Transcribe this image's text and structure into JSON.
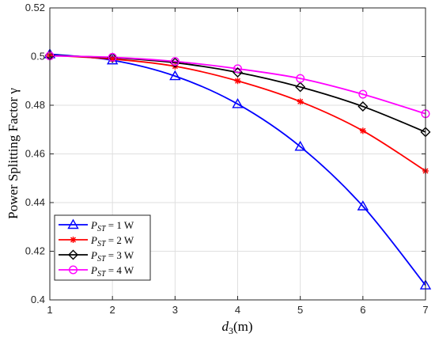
{
  "chart_data": {
    "type": "line",
    "xlabel": "d3(m)",
    "xlabel_parts": {
      "main": "d",
      "sub": "3",
      "rest": "(m)"
    },
    "ylabel": "Power Splitting Factor γ",
    "xlim": [
      1,
      7
    ],
    "ylim": [
      0.4,
      0.52
    ],
    "xticks": [
      1,
      2,
      3,
      4,
      5,
      6,
      7
    ],
    "yticks": [
      0.4,
      0.42,
      0.44,
      0.46,
      0.48,
      0.5,
      0.52
    ],
    "ytick_labels": [
      "0.4",
      "0.42",
      "0.44",
      "0.46",
      "0.48",
      "0.5",
      "0.52"
    ],
    "grid": true,
    "legend_position": "bottom-left",
    "x": [
      1,
      2,
      3,
      4,
      5,
      6,
      7
    ],
    "series": [
      {
        "name": "P_ST = 1 W",
        "label": {
          "main": "P",
          "sub": "ST",
          "rest": " = 1 W"
        },
        "color": "#0000ff",
        "marker": "triangle",
        "values": [
          0.501,
          0.4985,
          0.492,
          0.4805,
          0.463,
          0.4385,
          0.406
        ]
      },
      {
        "name": "P_ST = 2 W",
        "label": {
          "main": "P",
          "sub": "ST",
          "rest": " = 2 W"
        },
        "color": "#ff0000",
        "marker": "asterisk",
        "values": [
          0.5005,
          0.499,
          0.496,
          0.49,
          0.4815,
          0.4695,
          0.453
        ]
      },
      {
        "name": "P_ST = 3 W",
        "label": {
          "main": "P",
          "sub": "ST",
          "rest": " = 3 W"
        },
        "color": "#000000",
        "marker": "diamond",
        "values": [
          0.5005,
          0.4995,
          0.4975,
          0.4935,
          0.4875,
          0.4795,
          0.469
        ]
      },
      {
        "name": "P_ST = 4 W",
        "label": {
          "main": "P",
          "sub": "ST",
          "rest": " = 4 W"
        },
        "color": "#ff00ff",
        "marker": "circle",
        "values": [
          0.5003,
          0.4997,
          0.498,
          0.495,
          0.491,
          0.4845,
          0.4765
        ]
      }
    ]
  }
}
